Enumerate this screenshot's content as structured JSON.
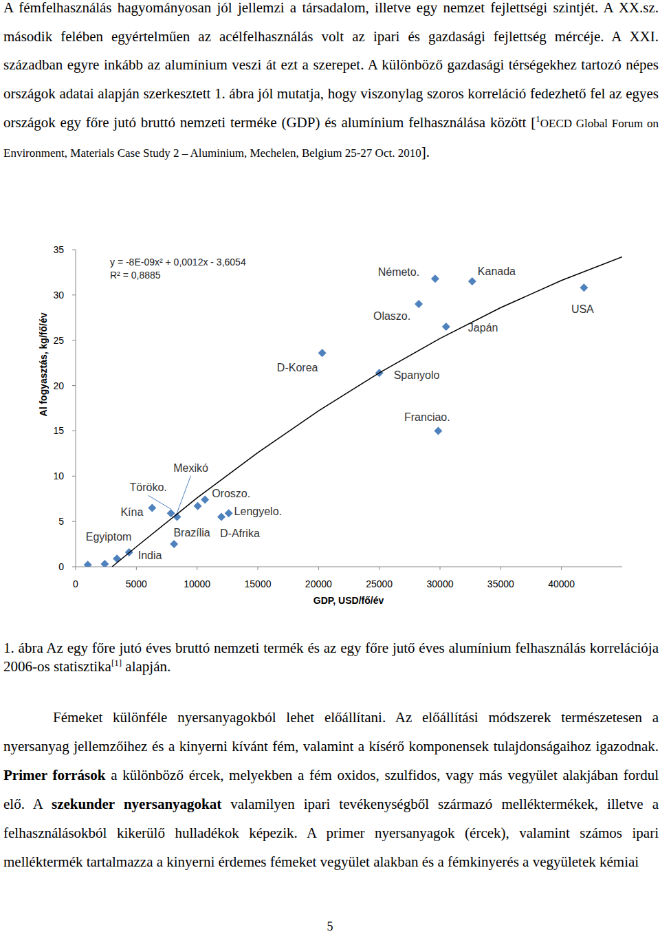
{
  "paragraph_1": {
    "runs": [
      {
        "text": "A fémfelhasználás hagyományosan jól jellemzi a társadalom, illetve egy nemzet fejlettségi szintjét. A XX.sz. második felében egyértelműen az acélfelhasználás volt az ipari és gazdasági fejlettség mércéje. A XXI. században egyre inkább az alumínium veszi át ezt a szerepet. A különböző gazdasági térségekhez tartozó népes országok adatai alapján szerkesztett 1. ábra jól mutatja, hogy viszonylag szoros korreláció fedezhető fel az egyes országok egy főre jutó bruttó nemzeti terméke (GDP) és alumínium felhasználása között ["
      },
      {
        "text": "1",
        "style": "sup"
      },
      {
        "text": "OECD Global Forum on Environment, Materials Case Study 2 – Aluminium, Mechelen, Belgium 25-27 Oct. 2010",
        "style": "small"
      },
      {
        "text": "]."
      }
    ]
  },
  "chart_data": {
    "type": "scatter",
    "equation": "y = -8E-09x² + 0,0012x - 3,6054",
    "r_squared": "R² = 0,8885",
    "x_label": "GDP, USD/fő/év",
    "y_label": "Al fogyasztás, kg/fő/év",
    "xlim": [
      0,
      45000
    ],
    "ylim": [
      0,
      35
    ],
    "xticks": [
      0,
      5000,
      10000,
      15000,
      20000,
      25000,
      30000,
      35000,
      40000
    ],
    "yticks": [
      0,
      5,
      10,
      15,
      20,
      25,
      30,
      35
    ],
    "grid": false,
    "series": [
      {
        "type": "scatter",
        "marker": "diamond",
        "color": "#4f81bd",
        "x": [
          1000,
          2400,
          3400,
          4400,
          6300,
          7850,
          8350,
          8100,
          10050,
          10650,
          12000,
          12600,
          20300,
          25000,
          28250,
          29600,
          29850,
          30500,
          32650,
          41850
        ],
        "values": [
          0.2,
          0.3,
          0.9,
          1.6,
          6.5,
          5.9,
          5.5,
          2.5,
          6.7,
          7.4,
          5.5,
          5.9,
          23.6,
          21.4,
          29.0,
          31.8,
          15.0,
          26.5,
          31.5,
          30.8
        ],
        "point_labels": [
          null,
          null,
          "Egyiptom",
          "India",
          "Kína",
          "Töröko.",
          "Mexikó",
          "Brazília",
          null,
          "Oroszo.",
          "D-Afrika",
          "Lengyelo.",
          "D-Korea",
          "Spanyolo",
          "Olaszo.",
          "Németo.",
          "Franciao.",
          "Japán",
          "Kanada",
          "USA"
        ]
      },
      {
        "type": "line",
        "line_style": "solid",
        "color": "#000000",
        "x": [
          3000,
          5000,
          10000,
          15000,
          20000,
          25000,
          30000,
          35000,
          40000,
          45000
        ],
        "values": [
          0.0,
          2.2,
          7.6,
          12.6,
          17.2,
          21.4,
          25.2,
          28.6,
          31.6,
          34.2
        ]
      }
    ]
  },
  "caption": {
    "runs": [
      {
        "text": "1. ábra "
      },
      {
        "text": "Az egy főre jutó éves bruttó nemzeti termék és az egy főre jutő éves alumínium felhasználás korrelációja 2006-os statisztika"
      },
      {
        "text": "[1]",
        "style": "sup"
      },
      {
        "text": " alapján."
      }
    ]
  },
  "paragraph_2": {
    "runs": [
      {
        "text": "Fémeket különféle nyersanyagokból lehet előállítani. Az előállítási módszerek természetesen a nyersanyag jellemzőihez és a kinyerni kívánt fém, valamint a kísérő komponensek tulajdonságaihoz igazodnak. "
      },
      {
        "text": "Primer források",
        "style": "bold"
      },
      {
        "text": " a különböző ércek, melyekben a fém oxidos, szulfidos, vagy más vegyület alakjában fordul elő. A "
      },
      {
        "text": "szekunder nyersanyagokat",
        "style": "bold"
      },
      {
        "text": " valamilyen ipari tevékenységből származó melléktermékek, illetve a felhasználásokból kikerülő hulladékok képezik. A primer nyersanyagok (ércek), valamint számos ipari melléktermék tartalmazza a kinyerni érdemes fémeket vegyület alakban és a fémkinyerés a vegyületek kémiai"
      }
    ]
  },
  "page_number": "5"
}
